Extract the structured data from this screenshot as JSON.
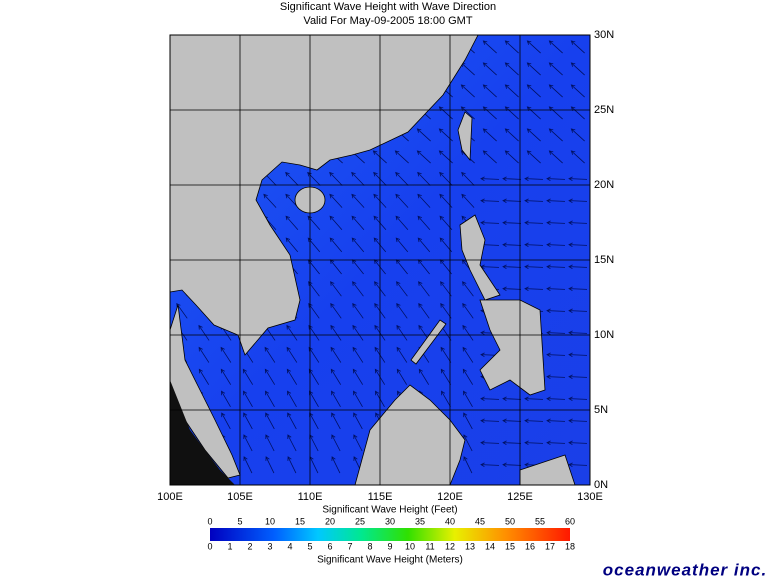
{
  "map": {
    "title": "Significant Wave Height with Wave Direction",
    "subtitle": "Valid For May-09-2005 18:00 GMT",
    "xlim": [
      100,
      130
    ],
    "xticks": [
      {
        "value": 100,
        "label": "100E"
      },
      {
        "value": 105,
        "label": "105E"
      },
      {
        "value": 110,
        "label": "110E"
      },
      {
        "value": 115,
        "label": "115E"
      },
      {
        "value": 120,
        "label": "120E"
      },
      {
        "value": 125,
        "label": "125E"
      },
      {
        "value": 130,
        "label": "130E"
      }
    ],
    "ylim": [
      0,
      30
    ],
    "yticks": [
      {
        "value": 0,
        "label": "0N"
      },
      {
        "value": 5,
        "label": "5N"
      },
      {
        "value": 10,
        "label": "10N"
      },
      {
        "value": 15,
        "label": "15N"
      },
      {
        "value": 20,
        "label": "20N"
      },
      {
        "value": 25,
        "label": "25N"
      },
      {
        "value": 30,
        "label": "30N"
      }
    ]
  },
  "colorbar": {
    "feet_label": "Significant Wave Height (Feet)",
    "feet_lim": [
      0,
      60
    ],
    "feet_ticks": [
      0,
      5,
      10,
      15,
      20,
      25,
      30,
      35,
      40,
      45,
      50,
      55,
      60
    ],
    "meters_label": "Significant Wave Height (Meters)",
    "meters_lim": [
      0,
      18
    ],
    "meters_ticks": [
      0,
      1,
      2,
      3,
      4,
      5,
      6,
      7,
      8,
      9,
      10,
      11,
      12,
      13,
      14,
      15,
      16,
      17,
      18
    ]
  },
  "logo": "oceanweather inc."
}
